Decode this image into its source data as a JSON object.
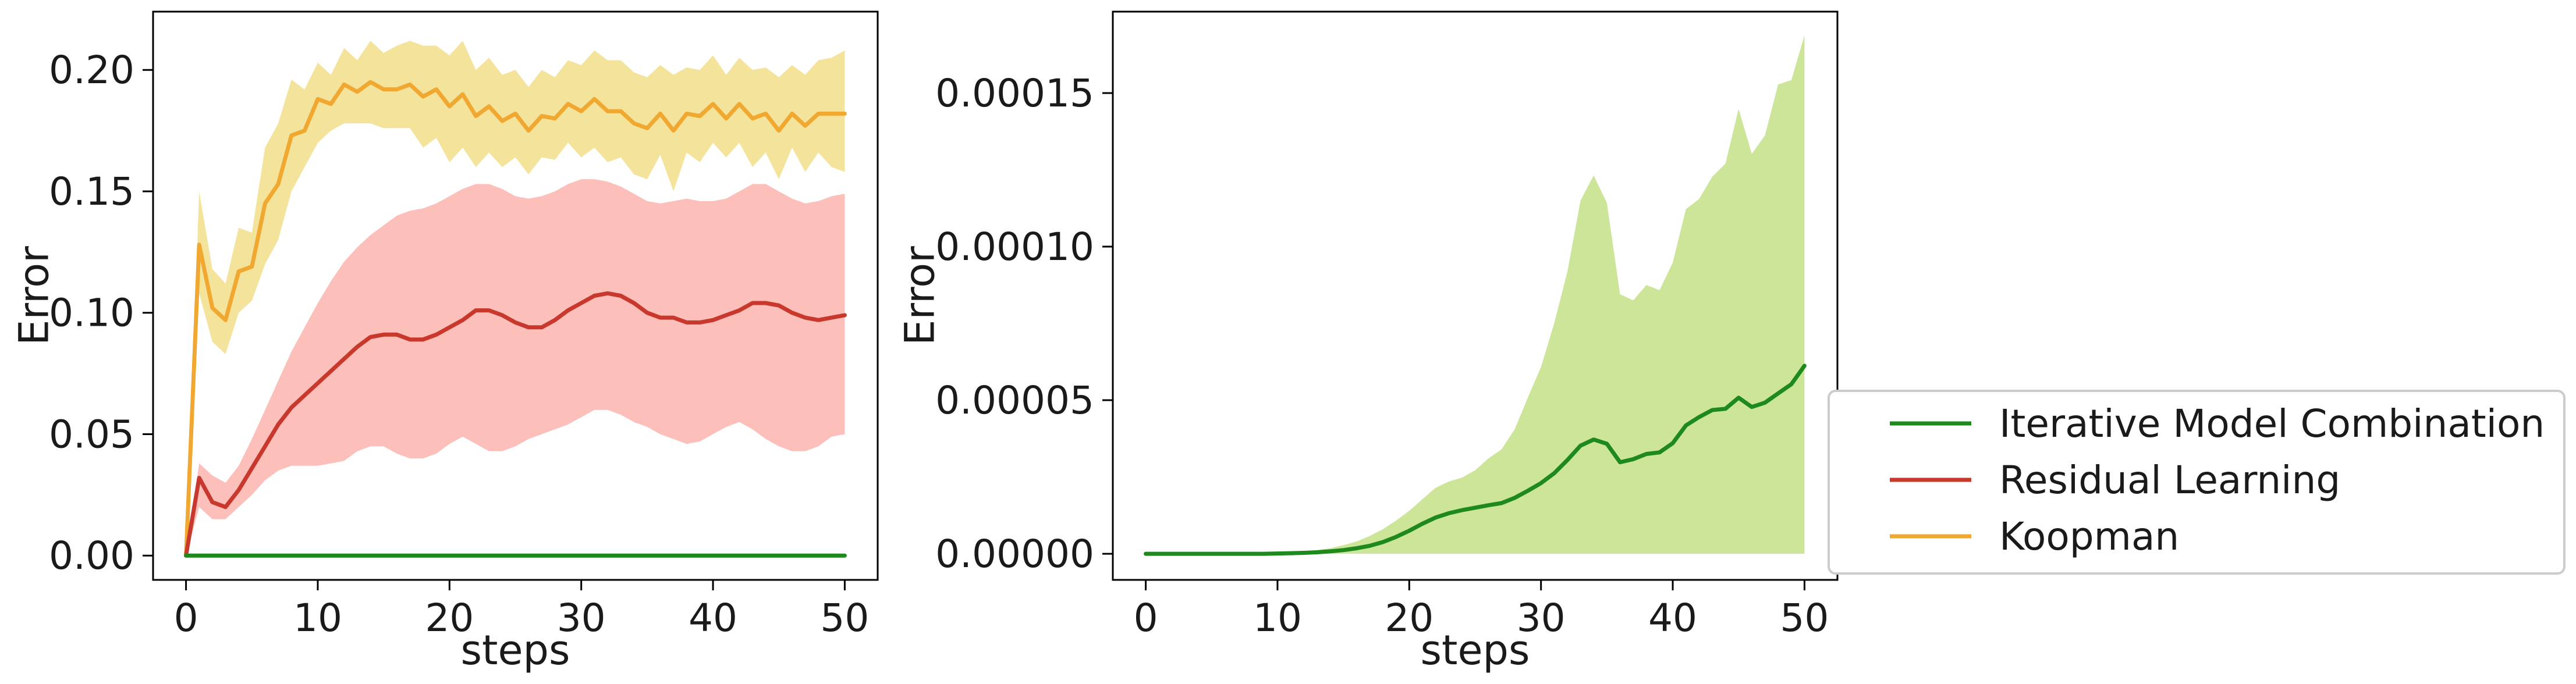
{
  "chart_data": [
    {
      "type": "line",
      "xlabel": "steps",
      "ylabel": "Error",
      "xlim": [
        -2.5,
        52.5
      ],
      "ylim": [
        -0.01,
        0.224
      ],
      "xticks": [
        0,
        10,
        20,
        30,
        40,
        50
      ],
      "xtick_labels": [
        "0",
        "10",
        "20",
        "30",
        "40",
        "50"
      ],
      "yticks": [
        0.0,
        0.05,
        0.1,
        0.15,
        0.2
      ],
      "ytick_labels": [
        "0.00",
        "0.05",
        "0.10",
        "0.15",
        "0.20"
      ],
      "grid": false,
      "x": [
        0,
        1,
        2,
        3,
        4,
        5,
        6,
        7,
        8,
        9,
        10,
        11,
        12,
        13,
        14,
        15,
        16,
        17,
        18,
        19,
        20,
        21,
        22,
        23,
        24,
        25,
        26,
        27,
        28,
        29,
        30,
        31,
        32,
        33,
        34,
        35,
        36,
        37,
        38,
        39,
        40,
        41,
        42,
        43,
        44,
        45,
        46,
        47,
        48,
        49,
        50
      ],
      "series": [
        {
          "name": "Koopman",
          "color": "#f0a830",
          "band_color": "#f3e296",
          "values": [
            0.0,
            0.128,
            0.102,
            0.097,
            0.117,
            0.119,
            0.145,
            0.153,
            0.173,
            0.175,
            0.188,
            0.186,
            0.194,
            0.191,
            0.195,
            0.192,
            0.192,
            0.194,
            0.189,
            0.192,
            0.185,
            0.19,
            0.181,
            0.185,
            0.179,
            0.182,
            0.175,
            0.181,
            0.18,
            0.186,
            0.183,
            0.188,
            0.183,
            0.183,
            0.178,
            0.176,
            0.182,
            0.175,
            0.182,
            0.181,
            0.186,
            0.18,
            0.186,
            0.18,
            0.182,
            0.175,
            0.182,
            0.177,
            0.182,
            0.182,
            0.182
          ],
          "lower": [
            0.0,
            0.108,
            0.088,
            0.083,
            0.1,
            0.105,
            0.12,
            0.13,
            0.15,
            0.16,
            0.17,
            0.175,
            0.178,
            0.178,
            0.178,
            0.176,
            0.176,
            0.176,
            0.168,
            0.172,
            0.162,
            0.168,
            0.16,
            0.166,
            0.16,
            0.164,
            0.157,
            0.164,
            0.163,
            0.17,
            0.164,
            0.168,
            0.162,
            0.164,
            0.157,
            0.155,
            0.165,
            0.15,
            0.166,
            0.162,
            0.17,
            0.164,
            0.17,
            0.16,
            0.166,
            0.155,
            0.168,
            0.158,
            0.166,
            0.16,
            0.158
          ],
          "upper": [
            0.0,
            0.15,
            0.118,
            0.112,
            0.135,
            0.133,
            0.168,
            0.178,
            0.196,
            0.192,
            0.203,
            0.198,
            0.209,
            0.204,
            0.212,
            0.207,
            0.21,
            0.212,
            0.21,
            0.21,
            0.206,
            0.212,
            0.2,
            0.205,
            0.198,
            0.2,
            0.193,
            0.2,
            0.197,
            0.204,
            0.202,
            0.208,
            0.204,
            0.204,
            0.199,
            0.197,
            0.202,
            0.198,
            0.201,
            0.2,
            0.206,
            0.198,
            0.205,
            0.2,
            0.201,
            0.197,
            0.202,
            0.198,
            0.204,
            0.205,
            0.208
          ]
        },
        {
          "name": "Residual Learning",
          "color": "#c8382c",
          "band_color": "#fcbcb6",
          "values": [
            0.0,
            0.032,
            0.022,
            0.02,
            0.027,
            0.036,
            0.045,
            0.054,
            0.061,
            0.066,
            0.071,
            0.076,
            0.081,
            0.086,
            0.09,
            0.091,
            0.091,
            0.089,
            0.089,
            0.091,
            0.094,
            0.097,
            0.101,
            0.101,
            0.099,
            0.096,
            0.094,
            0.094,
            0.097,
            0.101,
            0.104,
            0.107,
            0.108,
            0.107,
            0.104,
            0.1,
            0.098,
            0.098,
            0.096,
            0.096,
            0.097,
            0.099,
            0.101,
            0.104,
            0.104,
            0.103,
            0.1,
            0.098,
            0.097,
            0.098,
            0.099
          ],
          "lower": [
            0.0,
            0.02,
            0.015,
            0.015,
            0.02,
            0.025,
            0.031,
            0.035,
            0.037,
            0.037,
            0.037,
            0.038,
            0.039,
            0.043,
            0.045,
            0.045,
            0.042,
            0.04,
            0.04,
            0.042,
            0.046,
            0.049,
            0.046,
            0.043,
            0.043,
            0.045,
            0.048,
            0.05,
            0.052,
            0.054,
            0.057,
            0.06,
            0.06,
            0.058,
            0.055,
            0.053,
            0.05,
            0.048,
            0.046,
            0.047,
            0.05,
            0.053,
            0.055,
            0.052,
            0.048,
            0.045,
            0.043,
            0.043,
            0.045,
            0.049,
            0.05
          ],
          "upper": [
            0.0,
            0.038,
            0.033,
            0.03,
            0.037,
            0.048,
            0.06,
            0.072,
            0.084,
            0.094,
            0.104,
            0.113,
            0.121,
            0.127,
            0.132,
            0.136,
            0.14,
            0.142,
            0.143,
            0.145,
            0.148,
            0.151,
            0.153,
            0.153,
            0.151,
            0.148,
            0.147,
            0.148,
            0.15,
            0.153,
            0.155,
            0.155,
            0.154,
            0.152,
            0.149,
            0.146,
            0.145,
            0.146,
            0.147,
            0.146,
            0.146,
            0.147,
            0.15,
            0.153,
            0.153,
            0.15,
            0.147,
            0.145,
            0.146,
            0.148,
            0.149
          ]
        },
        {
          "name": "Iterative Model Combination",
          "color": "#1e8a1e",
          "values": [
            0.0,
            0.0,
            0.0,
            0.0,
            0.0,
            0.0,
            0.0,
            0.0,
            0.0,
            0.0,
            0.0,
            0.0,
            0.0,
            0.0,
            0.0,
            0.0,
            0.0,
            0.0,
            0.0,
            0.0,
            0.0,
            0.0,
            0.0,
            0.0,
            0.0,
            0.0,
            0.0,
            0.0,
            0.0,
            0.0,
            0.0,
            0.0,
            0.0,
            0.0,
            0.0,
            0.0,
            0.0,
            0.0,
            0.0,
            0.0,
            0.0,
            0.0,
            0.0,
            0.0,
            0.0,
            0.0,
            0.0,
            0.0,
            0.0,
            0.0,
            0.0
          ]
        }
      ]
    },
    {
      "type": "line",
      "xlabel": "steps",
      "ylabel": "Error",
      "xlim": [
        -2.5,
        52.5
      ],
      "ylim": [
        -8.5e-06,
        0.0001765
      ],
      "xticks": [
        0,
        10,
        20,
        30,
        40,
        50
      ],
      "xtick_labels": [
        "0",
        "10",
        "20",
        "30",
        "40",
        "50"
      ],
      "yticks": [
        0.0,
        5e-05,
        0.0001,
        0.00015
      ],
      "ytick_labels": [
        "0.00000",
        "0.00005",
        "0.00010",
        "0.00015"
      ],
      "grid": false,
      "x": [
        0,
        1,
        2,
        3,
        4,
        5,
        6,
        7,
        8,
        9,
        10,
        11,
        12,
        13,
        14,
        15,
        16,
        17,
        18,
        19,
        20,
        21,
        22,
        23,
        24,
        25,
        26,
        27,
        28,
        29,
        30,
        31,
        32,
        33,
        34,
        35,
        36,
        37,
        38,
        39,
        40,
        41,
        42,
        43,
        44,
        45,
        46,
        47,
        48,
        49,
        50
      ],
      "series": [
        {
          "name": "Iterative Model Combination",
          "color": "#1e8a1e",
          "band_color": "#cde599",
          "values": [
            0.0,
            0.0,
            0.0,
            0.0,
            0.0,
            0.0,
            0.0,
            0.0,
            0.0,
            0.0,
            1e-07,
            2e-07,
            3e-07,
            5e-07,
            8e-07,
            1.2e-06,
            1.8e-06,
            2.6e-06,
            3.8e-06,
            5.5e-06,
            7.5e-06,
            9.8e-06,
            1.18e-05,
            1.32e-05,
            1.42e-05,
            1.5e-05,
            1.58e-05,
            1.65e-05,
            1.82e-05,
            2.05e-05,
            2.3e-05,
            2.62e-05,
            3.05e-05,
            3.52e-05,
            3.72e-05,
            3.58e-05,
            2.98e-05,
            3.08e-05,
            3.25e-05,
            3.3e-05,
            3.6e-05,
            4.18e-05,
            4.45e-05,
            4.68e-05,
            4.72e-05,
            5.08e-05,
            4.78e-05,
            4.92e-05,
            5.22e-05,
            5.52e-05,
            6.12e-05
          ],
          "lower": [
            0.0,
            0.0,
            0.0,
            0.0,
            0.0,
            0.0,
            0.0,
            0.0,
            0.0,
            0.0,
            0.0,
            0.0,
            0.0,
            0.0,
            0.0,
            0.0,
            0.0,
            0.0,
            0.0,
            0.0,
            0.0,
            0.0,
            0.0,
            0.0,
            0.0,
            0.0,
            0.0,
            0.0,
            0.0,
            0.0,
            0.0,
            0.0,
            0.0,
            0.0,
            0.0,
            0.0,
            0.0,
            0.0,
            0.0,
            0.0,
            0.0,
            0.0,
            0.0,
            0.0,
            0.0,
            0.0,
            0.0,
            0.0,
            0.0,
            0.0,
            0.0
          ],
          "upper": [
            0.0,
            0.0,
            0.0,
            0.0,
            0.0,
            0.0,
            0.0,
            0.0,
            0.0,
            0.0,
            2e-07,
            4e-07,
            7e-07,
            1.2e-06,
            1.8e-06,
            2.8e-06,
            4e-06,
            5.8e-06,
            8e-06,
            1.08e-05,
            1.4e-05,
            1.78e-05,
            2.15e-05,
            2.35e-05,
            2.48e-05,
            2.72e-05,
            3.1e-05,
            3.4e-05,
            4.05e-05,
            5.08e-05,
            6.08e-05,
            7.5e-05,
            9.18e-05,
            0.000115,
            0.0001232,
            0.0001142,
            8.45e-05,
            8.25e-05,
            8.75e-05,
            8.58e-05,
            9.48e-05,
            0.0001122,
            0.0001155,
            0.0001228,
            0.000127,
            0.0001448,
            0.0001302,
            0.0001362,
            0.0001528,
            0.0001542,
            0.0001688
          ]
        }
      ]
    }
  ],
  "legend": {
    "placement": "outside-right",
    "entries": [
      {
        "label": "Iterative Model Combination",
        "color": "#1e8a1e"
      },
      {
        "label": "Residual Learning",
        "color": "#c8382c"
      },
      {
        "label": "Koopman",
        "color": "#f0a830"
      }
    ]
  }
}
